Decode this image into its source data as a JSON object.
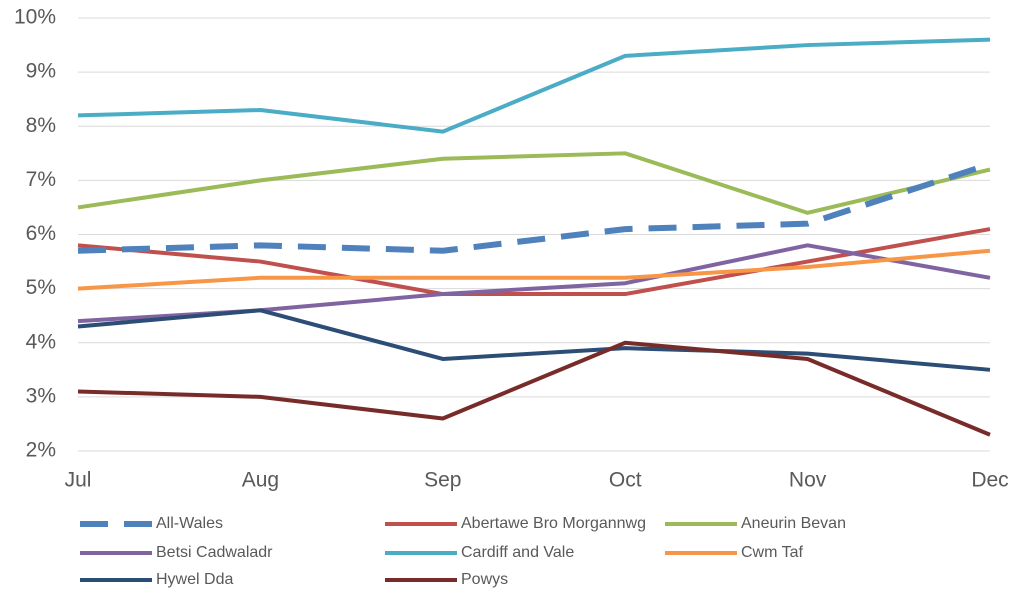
{
  "chart_data": {
    "type": "line",
    "categories": [
      "Jul",
      "Aug",
      "Sep",
      "Oct",
      "Nov",
      "Dec"
    ],
    "series": [
      {
        "name": "All-Wales",
        "color": "#4f81bd",
        "dashed": true,
        "values": [
          5.7,
          5.8,
          5.7,
          6.1,
          6.2,
          7.3
        ]
      },
      {
        "name": "Abertawe Bro Morgannwg",
        "color": "#c0504d",
        "values": [
          5.8,
          5.5,
          4.9,
          4.9,
          5.5,
          6.1
        ]
      },
      {
        "name": "Aneurin Bevan",
        "color": "#9bbb59",
        "values": [
          6.5,
          7.0,
          7.4,
          7.5,
          6.4,
          7.2
        ]
      },
      {
        "name": "Betsi Cadwaladr",
        "color": "#8064a2",
        "values": [
          4.4,
          4.6,
          4.9,
          5.1,
          5.8,
          5.2
        ]
      },
      {
        "name": "Cardiff and Vale",
        "color": "#4bacc6",
        "values": [
          8.2,
          8.3,
          7.9,
          9.3,
          9.5,
          9.6
        ]
      },
      {
        "name": "Cwm Taf",
        "color": "#f79646",
        "values": [
          5.0,
          5.2,
          5.2,
          5.2,
          5.4,
          5.7
        ]
      },
      {
        "name": "Hywel Dda",
        "color": "#2c4d75",
        "values": [
          4.3,
          4.6,
          3.7,
          3.9,
          3.8,
          3.5
        ]
      },
      {
        "name": "Powys",
        "color": "#772c2a",
        "values": [
          3.1,
          3.0,
          2.6,
          4.0,
          3.7,
          2.3
        ]
      }
    ],
    "ylim": [
      2,
      10
    ],
    "yticks": [
      {
        "value": 2,
        "label": "2%"
      },
      {
        "value": 3,
        "label": "3%"
      },
      {
        "value": 4,
        "label": "4%"
      },
      {
        "value": 5,
        "label": "5%"
      },
      {
        "value": 6,
        "label": "6%"
      },
      {
        "value": 7,
        "label": "7%"
      },
      {
        "value": 8,
        "label": "8%"
      },
      {
        "value": 9,
        "label": "9%"
      },
      {
        "value": 10,
        "label": "10%"
      }
    ],
    "grid": true,
    "legend": "bottom"
  }
}
